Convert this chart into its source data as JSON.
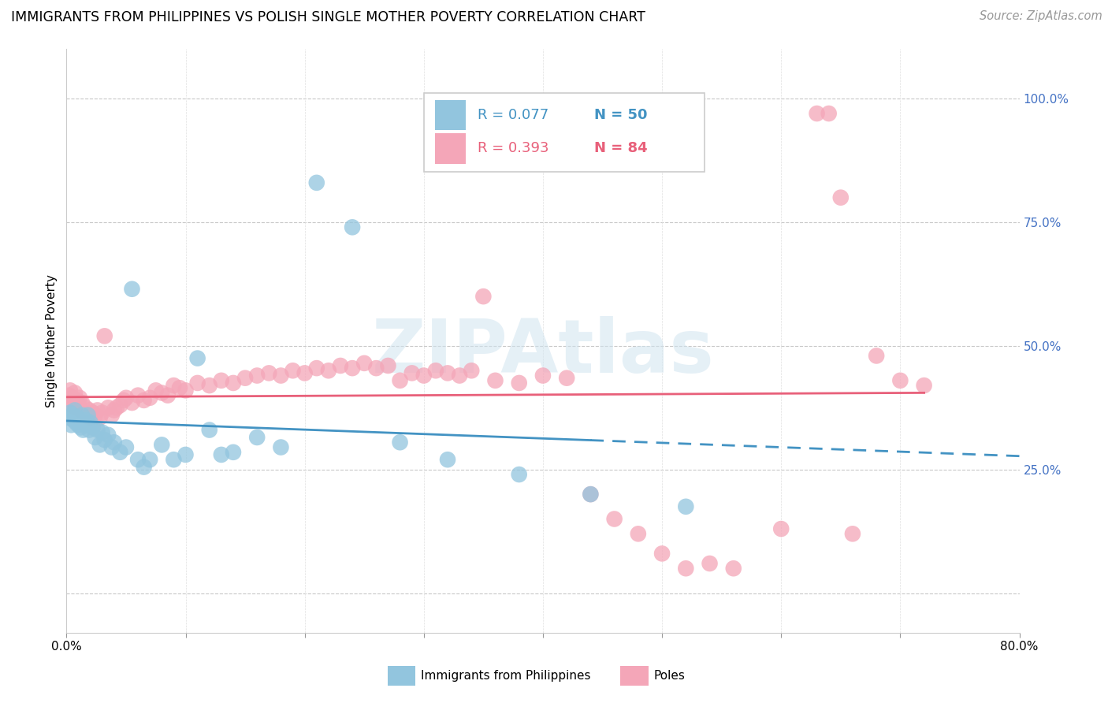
{
  "title": "IMMIGRANTS FROM PHILIPPINES VS POLISH SINGLE MOTHER POVERTY CORRELATION CHART",
  "source": "Source: ZipAtlas.com",
  "ylabel": "Single Mother Poverty",
  "xlim": [
    0.0,
    0.8
  ],
  "ylim": [
    -0.08,
    1.1
  ],
  "background_color": "#ffffff",
  "blue_color": "#92c5de",
  "pink_color": "#f4a6b8",
  "blue_line_color": "#4393c3",
  "pink_line_color": "#e8607a",
  "blue_label": "Immigrants from Philippines",
  "pink_label": "Poles",
  "blue_R": "R = 0.077",
  "blue_N": "N = 50",
  "pink_R": "R = 0.393",
  "pink_N": "N = 84",
  "watermark": "ZIPAtlas",
  "title_fontsize": 12.5,
  "axis_label_fontsize": 11,
  "tick_fontsize": 11,
  "legend_fontsize": 13,
  "source_fontsize": 10.5,
  "blue_scatter_x": [
    0.002,
    0.003,
    0.004,
    0.005,
    0.006,
    0.007,
    0.008,
    0.009,
    0.01,
    0.011,
    0.012,
    0.013,
    0.014,
    0.015,
    0.016,
    0.017,
    0.018,
    0.019,
    0.02,
    0.022,
    0.024,
    0.026,
    0.028,
    0.03,
    0.032,
    0.035,
    0.038,
    0.04,
    0.045,
    0.05,
    0.055,
    0.06,
    0.065,
    0.07,
    0.08,
    0.09,
    0.1,
    0.11,
    0.12,
    0.13,
    0.14,
    0.16,
    0.18,
    0.21,
    0.24,
    0.28,
    0.32,
    0.38,
    0.44,
    0.52
  ],
  "blue_scatter_y": [
    0.355,
    0.365,
    0.34,
    0.36,
    0.35,
    0.37,
    0.345,
    0.355,
    0.34,
    0.35,
    0.335,
    0.36,
    0.33,
    0.345,
    0.35,
    0.34,
    0.36,
    0.33,
    0.345,
    0.335,
    0.315,
    0.33,
    0.3,
    0.325,
    0.31,
    0.32,
    0.295,
    0.305,
    0.285,
    0.295,
    0.615,
    0.27,
    0.255,
    0.27,
    0.3,
    0.27,
    0.28,
    0.475,
    0.33,
    0.28,
    0.285,
    0.315,
    0.295,
    0.83,
    0.74,
    0.305,
    0.27,
    0.24,
    0.2,
    0.175
  ],
  "pink_scatter_x": [
    0.002,
    0.003,
    0.004,
    0.005,
    0.006,
    0.007,
    0.008,
    0.009,
    0.01,
    0.011,
    0.012,
    0.013,
    0.015,
    0.016,
    0.018,
    0.019,
    0.02,
    0.022,
    0.024,
    0.026,
    0.028,
    0.03,
    0.032,
    0.035,
    0.038,
    0.04,
    0.042,
    0.045,
    0.048,
    0.05,
    0.055,
    0.06,
    0.065,
    0.07,
    0.075,
    0.08,
    0.085,
    0.09,
    0.095,
    0.1,
    0.11,
    0.12,
    0.13,
    0.14,
    0.15,
    0.16,
    0.17,
    0.18,
    0.19,
    0.2,
    0.21,
    0.22,
    0.23,
    0.24,
    0.25,
    0.26,
    0.27,
    0.28,
    0.29,
    0.3,
    0.31,
    0.32,
    0.33,
    0.34,
    0.35,
    0.36,
    0.38,
    0.4,
    0.42,
    0.44,
    0.46,
    0.48,
    0.5,
    0.52,
    0.54,
    0.56,
    0.6,
    0.63,
    0.64,
    0.65,
    0.66,
    0.68,
    0.7,
    0.72
  ],
  "pink_scatter_y": [
    0.4,
    0.41,
    0.38,
    0.395,
    0.385,
    0.405,
    0.375,
    0.39,
    0.38,
    0.395,
    0.37,
    0.385,
    0.365,
    0.375,
    0.36,
    0.37,
    0.355,
    0.365,
    0.36,
    0.37,
    0.355,
    0.365,
    0.52,
    0.375,
    0.36,
    0.37,
    0.375,
    0.38,
    0.39,
    0.395,
    0.385,
    0.4,
    0.39,
    0.395,
    0.41,
    0.405,
    0.4,
    0.42,
    0.415,
    0.41,
    0.425,
    0.42,
    0.43,
    0.425,
    0.435,
    0.44,
    0.445,
    0.44,
    0.45,
    0.445,
    0.455,
    0.45,
    0.46,
    0.455,
    0.465,
    0.455,
    0.46,
    0.43,
    0.445,
    0.44,
    0.45,
    0.445,
    0.44,
    0.45,
    0.6,
    0.43,
    0.425,
    0.44,
    0.435,
    0.2,
    0.15,
    0.12,
    0.08,
    0.05,
    0.06,
    0.05,
    0.13,
    0.97,
    0.97,
    0.8,
    0.12,
    0.48,
    0.43,
    0.42
  ]
}
